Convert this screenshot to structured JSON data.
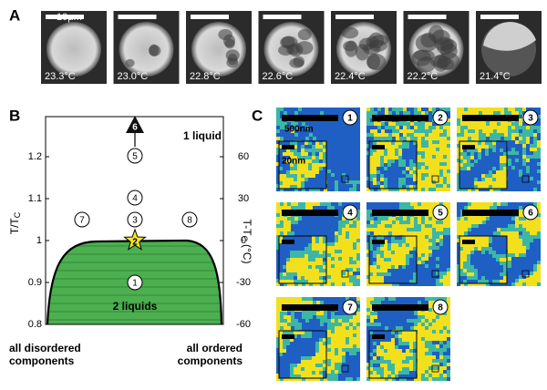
{
  "panel_labels": [
    "A",
    "B",
    "C"
  ],
  "panel_a": {
    "scale_bar": "10μm",
    "temperatures": [
      "23.3°C",
      "23.0°C",
      "22.8°C",
      "22.6°C",
      "22.4°C",
      "22.2°C",
      "21.4°C"
    ]
  },
  "panel_b": {
    "y_label": "T/T",
    "y_label_sub": "C",
    "y2_label": "T-T",
    "y2_label_sub": "C",
    "y2_label_unit": "(°C)",
    "yticks": [
      "0.8",
      "0.9",
      "1",
      "1.1",
      "1.2"
    ],
    "y2ticks": [
      "-60",
      "-30",
      "0",
      "30",
      "60"
    ],
    "points": [
      "1",
      "2",
      "3",
      "4",
      "5",
      "6",
      "7",
      "8"
    ],
    "one_phase": "1 liquid",
    "two_phase": "2 liquids",
    "left_caption": [
      "all disordered",
      "components"
    ],
    "right_caption": [
      "all ordered",
      "components"
    ]
  },
  "panel_c": {
    "scale_bar": "500nm",
    "inset_scale_bar": "20nm",
    "tiles": [
      "1",
      "2",
      "3",
      "4",
      "5",
      "6",
      "7",
      "8"
    ]
  }
}
